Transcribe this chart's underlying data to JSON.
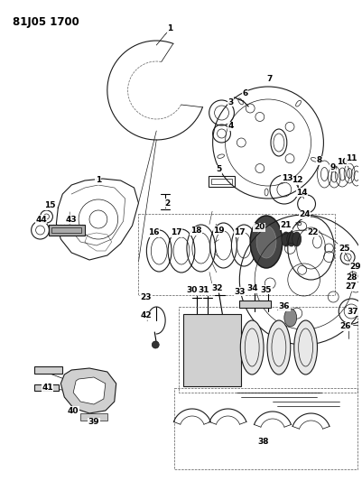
{
  "title_code": "81J05 1700",
  "bg_color": "#ffffff",
  "line_color": "#1a1a1a",
  "label_color": "#000000",
  "title_fontsize": 8.5,
  "label_fontsize": 6.5,
  "fig_width": 4.01,
  "fig_height": 5.33,
  "dpi": 100
}
